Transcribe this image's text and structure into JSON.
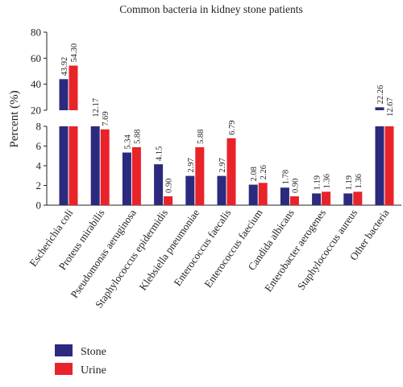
{
  "chart_data": {
    "type": "bar",
    "title": "Common bacteria in kidney stone patients",
    "ylabel": "Percent (%)",
    "xlabel": "",
    "broken_axis": true,
    "lower_ylim": [
      0,
      8
    ],
    "upper_ylim": [
      20,
      80
    ],
    "lower_ticks": [
      "0",
      "2",
      "4",
      "6",
      "8"
    ],
    "upper_ticks": [
      "20",
      "40",
      "60",
      "80"
    ],
    "categories": [
      "Escherichia coli",
      "Proteus mirabilis",
      "Pseudomonas aeruginosa",
      "Staphylococcus epidermidis",
      "Klebsiella pneumoniae",
      "Enterococcus faecalis",
      "Enterococcus faecium",
      "Candida albicans",
      "Enterobacter aerogenes",
      "Staphylococcus aureus",
      "Other bacteria"
    ],
    "series": [
      {
        "name": "Stone",
        "color": "#2b2a7e",
        "values": [
          43.92,
          12.17,
          5.34,
          4.15,
          2.97,
          2.97,
          2.08,
          1.78,
          1.19,
          1.19,
          22.26
        ],
        "labels": [
          "43.92",
          "12.17",
          "5.34",
          "4.15",
          "2.97",
          "2.97",
          "2.08",
          "1.78",
          "1.19",
          "1.19",
          "22.26"
        ]
      },
      {
        "name": "Urine",
        "color": "#e8232a",
        "values": [
          54.3,
          7.69,
          5.88,
          0.9,
          5.88,
          6.79,
          2.26,
          0.9,
          1.36,
          1.36,
          12.67
        ],
        "labels": [
          "54.30",
          "7.69",
          "5.88",
          "0.90",
          "5.88",
          "6.79",
          "2.26",
          "0.90",
          "1.36",
          "1.36",
          "12.67"
        ]
      }
    ],
    "legend_position": "bottom-left",
    "grid": false
  }
}
